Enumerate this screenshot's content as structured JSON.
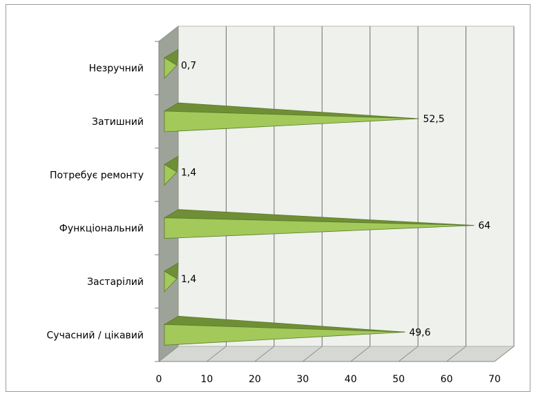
{
  "chart_data": {
    "type": "bar",
    "orientation": "horizontal",
    "style": "3d-pyramid",
    "categories": [
      "Незручний",
      "Затишний",
      "Потребує ремонту",
      "Функціональний",
      "Застарілий",
      "Сучасний / цікавий"
    ],
    "values": [
      0.7,
      52.5,
      1.4,
      64,
      1.4,
      49.6
    ],
    "data_labels": [
      "0,7",
      "52,5",
      "1,4",
      "64",
      "1,4",
      "49,6"
    ],
    "xlim": [
      0,
      70
    ],
    "x_ticks": [
      "0",
      "10",
      "20",
      "30",
      "40",
      "50",
      "60",
      "70"
    ],
    "grid": true,
    "legend": "none",
    "colors": {
      "bar_face": "#a3c95a",
      "bar_top": "#6f8f36",
      "bar_edge": "#5b7a2a",
      "wall": "#eef1ec",
      "floor": "#d5d8d3",
      "side_wall": "#9ea39a",
      "grid": "#6e6e6e"
    }
  }
}
